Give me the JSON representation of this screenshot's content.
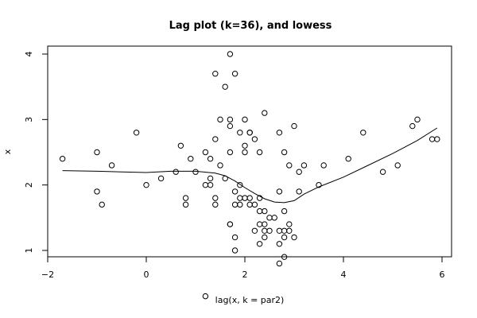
{
  "chart_data": {
    "type": "scatter",
    "title": "Lag plot (k=36), and lowess",
    "xlabel": "lag(x, k = par2)",
    "ylabel": "x",
    "xlim": [
      -2.0,
      6.0
    ],
    "ylim": [
      0.2,
      4.1
    ],
    "xticks": [
      "-2",
      "0",
      "2",
      "4",
      "6"
    ],
    "yticks": [
      "1",
      "2",
      "3",
      "4"
    ],
    "grid": false,
    "legend": "none",
    "colors": {
      "points": "#000000",
      "line": "#000000",
      "frame": "#000000"
    },
    "points": [
      [
        -1.7,
        2.4
      ],
      [
        -1.0,
        2.5
      ],
      [
        -1.0,
        1.9
      ],
      [
        -0.9,
        1.7
      ],
      [
        -0.7,
        2.3
      ],
      [
        -0.2,
        2.8
      ],
      [
        0.0,
        2.0
      ],
      [
        0.3,
        2.1
      ],
      [
        0.6,
        2.2
      ],
      [
        0.7,
        2.6
      ],
      [
        0.8,
        1.8
      ],
      [
        0.8,
        1.7
      ],
      [
        0.9,
        2.4
      ],
      [
        1.0,
        2.2
      ],
      [
        1.2,
        2.5
      ],
      [
        1.2,
        2.0
      ],
      [
        1.2,
        0.3
      ],
      [
        1.3,
        2.1
      ],
      [
        1.3,
        2.0
      ],
      [
        1.3,
        2.4
      ],
      [
        1.4,
        2.7
      ],
      [
        1.4,
        1.8
      ],
      [
        1.4,
        1.7
      ],
      [
        1.4,
        3.7
      ],
      [
        1.5,
        3.0
      ],
      [
        1.5,
        2.3
      ],
      [
        1.6,
        3.5
      ],
      [
        1.6,
        2.1
      ],
      [
        1.7,
        4.0
      ],
      [
        1.7,
        3.0
      ],
      [
        1.7,
        2.9
      ],
      [
        1.7,
        2.5
      ],
      [
        1.7,
        1.4
      ],
      [
        1.7,
        1.4
      ],
      [
        1.8,
        3.7
      ],
      [
        1.8,
        1.9
      ],
      [
        1.8,
        1.7
      ],
      [
        1.8,
        1.2
      ],
      [
        1.8,
        1.0
      ],
      [
        1.9,
        2.8
      ],
      [
        1.9,
        2.0
      ],
      [
        1.9,
        1.8
      ],
      [
        1.9,
        1.7
      ],
      [
        2.0,
        3.0
      ],
      [
        2.0,
        2.6
      ],
      [
        2.0,
        2.5
      ],
      [
        2.0,
        1.8
      ],
      [
        2.1,
        2.8
      ],
      [
        2.1,
        2.8
      ],
      [
        2.1,
        1.8
      ],
      [
        2.1,
        1.7
      ],
      [
        2.2,
        2.7
      ],
      [
        2.2,
        1.7
      ],
      [
        2.2,
        1.3
      ],
      [
        2.3,
        2.5
      ],
      [
        2.3,
        1.8
      ],
      [
        2.3,
        1.6
      ],
      [
        2.3,
        1.4
      ],
      [
        2.3,
        1.1
      ],
      [
        2.4,
        3.1
      ],
      [
        2.4,
        1.6
      ],
      [
        2.4,
        1.4
      ],
      [
        2.4,
        1.3
      ],
      [
        2.4,
        1.2
      ],
      [
        2.5,
        1.5
      ],
      [
        2.5,
        1.3
      ],
      [
        2.6,
        1.5
      ],
      [
        2.7,
        2.8
      ],
      [
        2.7,
        1.9
      ],
      [
        2.7,
        1.3
      ],
      [
        2.7,
        1.1
      ],
      [
        2.7,
        0.8
      ],
      [
        2.8,
        2.5
      ],
      [
        2.8,
        1.6
      ],
      [
        2.8,
        1.3
      ],
      [
        2.8,
        1.2
      ],
      [
        2.8,
        0.9
      ],
      [
        2.9,
        2.3
      ],
      [
        2.9,
        1.4
      ],
      [
        2.9,
        1.3
      ],
      [
        3.0,
        2.9
      ],
      [
        3.0,
        1.2
      ],
      [
        3.1,
        2.2
      ],
      [
        3.1,
        1.9
      ],
      [
        3.2,
        2.3
      ],
      [
        3.5,
        2.0
      ],
      [
        3.6,
        2.3
      ],
      [
        4.1,
        2.4
      ],
      [
        4.4,
        2.8
      ],
      [
        4.8,
        2.2
      ],
      [
        5.1,
        2.3
      ],
      [
        5.4,
        2.9
      ],
      [
        5.5,
        3.0
      ],
      [
        5.8,
        2.7
      ],
      [
        5.9,
        2.7
      ]
    ],
    "lowess": [
      [
        -1.7,
        2.22
      ],
      [
        -1.0,
        2.21
      ],
      [
        -0.5,
        2.2
      ],
      [
        0.0,
        2.19
      ],
      [
        0.5,
        2.21
      ],
      [
        1.0,
        2.21
      ],
      [
        1.4,
        2.18
      ],
      [
        1.6,
        2.14
      ],
      [
        1.8,
        2.06
      ],
      [
        2.0,
        1.96
      ],
      [
        2.2,
        1.87
      ],
      [
        2.4,
        1.79
      ],
      [
        2.6,
        1.74
      ],
      [
        2.8,
        1.73
      ],
      [
        3.0,
        1.76
      ],
      [
        3.2,
        1.86
      ],
      [
        3.5,
        1.97
      ],
      [
        4.0,
        2.12
      ],
      [
        4.5,
        2.3
      ],
      [
        5.0,
        2.48
      ],
      [
        5.5,
        2.68
      ],
      [
        5.9,
        2.87
      ]
    ]
  }
}
